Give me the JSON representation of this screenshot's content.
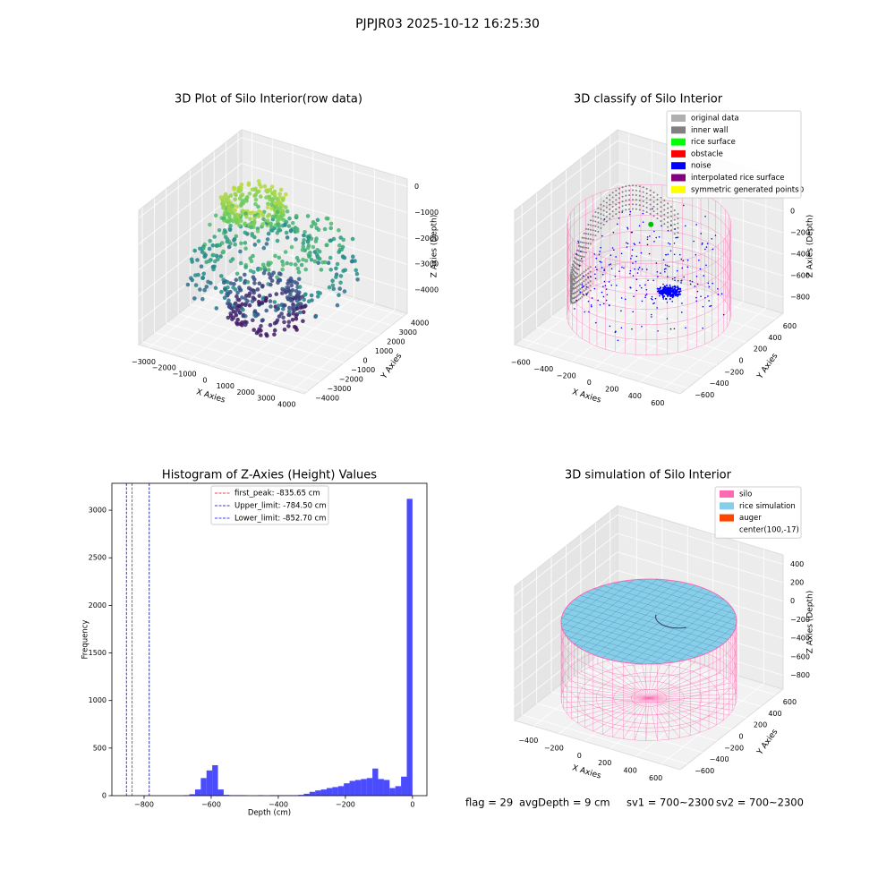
{
  "title": "PJPJR03 2025-10-12 16:25:30",
  "panels": [
    {
      "title": "3D Plot of Silo Interior(row data)",
      "xlabel": "X Axies",
      "ylabel": "Y Axies",
      "zlabel": "Z Axies (Depth)",
      "xlim": [
        -3500,
        4600
      ],
      "ylim": [
        -4300,
        4300
      ],
      "zlim": [
        -4900,
        300
      ],
      "xticks": [
        {
          "value": -3000,
          "label": "−3000"
        },
        {
          "value": -2000,
          "label": "−2000"
        },
        {
          "value": -1000,
          "label": "−1000"
        },
        0,
        1000,
        2000,
        3000,
        4000
      ],
      "yticks": [
        {
          "value": -4000,
          "label": "−4000"
        },
        {
          "value": -3000,
          "label": "−3000"
        },
        {
          "value": -2000,
          "label": "−2000"
        },
        {
          "value": -1000,
          "label": "−1000"
        },
        0,
        1000,
        2000,
        3000,
        4000
      ],
      "zticks": [
        0,
        {
          "value": -1000,
          "label": "−1000"
        },
        {
          "value": -2000,
          "label": "−2000"
        },
        {
          "value": -3000,
          "label": "−3000"
        },
        {
          "value": -4000,
          "label": "−4000"
        }
      ]
    },
    {
      "title": "3D classify of Silo Interior",
      "xlabel": "X Axies",
      "ylabel": "Y Axies",
      "zlabel": "Z Axies (Depth)",
      "xlim": [
        -700,
        750
      ],
      "ylim": [
        -700,
        700
      ],
      "zlim": [
        -950,
        300
      ],
      "xticks": [
        {
          "value": -600,
          "label": "−600"
        },
        {
          "value": -400,
          "label": "−400"
        },
        {
          "value": -200,
          "label": "−200"
        },
        0,
        200,
        400,
        600
      ],
      "yticks": [
        {
          "value": -600,
          "label": "−600"
        },
        {
          "value": -400,
          "label": "−400"
        },
        {
          "value": -200,
          "label": "−200"
        },
        0,
        200,
        400,
        600
      ],
      "zticks": [
        200,
        0,
        {
          "value": -200,
          "label": "−200"
        },
        {
          "value": -400,
          "label": "−400"
        },
        {
          "value": -600,
          "label": "−600"
        },
        {
          "value": -800,
          "label": "−800"
        }
      ],
      "legend": [
        {
          "name": "original data",
          "color": "#b0b0b0"
        },
        {
          "name": "inner wall",
          "color": "#808080"
        },
        {
          "name": "rice surface",
          "color": "#00ff00"
        },
        {
          "name": "obstacle",
          "color": "#ff0000"
        },
        {
          "name": "noise",
          "color": "#0000ff"
        },
        {
          "name": "interpolated rice surface",
          "color": "#800080"
        },
        {
          "name": "symmetric generated points",
          "color": "#ffff00"
        }
      ]
    },
    {
      "title": "3D simulation of Silo Interior",
      "xlabel": "X Axies",
      "ylabel": "Y Axies",
      "zlabel": "Z Axies (Depth)",
      "xlim": [
        -550,
        750
      ],
      "ylim": [
        -700,
        700
      ],
      "zlim": [
        -950,
        500
      ],
      "xticks": [
        {
          "value": -400,
          "label": "−400"
        },
        {
          "value": -200,
          "label": "−200"
        },
        0,
        200,
        400,
        600
      ],
      "yticks": [
        {
          "value": -600,
          "label": "−600"
        },
        {
          "value": -400,
          "label": "−400"
        },
        {
          "value": -200,
          "label": "−200"
        },
        0,
        200,
        400,
        600
      ],
      "zticks": [
        400,
        200,
        0,
        {
          "value": -200,
          "label": "−200"
        },
        {
          "value": -400,
          "label": "−400"
        },
        {
          "value": -600,
          "label": "−600"
        },
        {
          "value": -800,
          "label": "−800"
        }
      ],
      "legend": [
        {
          "name": "silo",
          "color": "#ff69b4"
        },
        {
          "name": "rice simulation",
          "color": "#87ceeb"
        },
        {
          "name": "auger",
          "color": "#ff4500"
        },
        {
          "name": "center(100,-17)",
          "color": "#ffffff"
        }
      ]
    }
  ],
  "chart_data": {
    "type": "histogram",
    "title": "Histogram of Z-Axies (Height) Values",
    "xlabel": "Depth (cm)",
    "ylabel": "Frequency",
    "color": "#0000ff",
    "alpha": 0.7,
    "bins": [
      -852.7,
      -835.65,
      -818.59,
      -801.54,
      -784.48,
      -767.43,
      -750.38,
      -733.32,
      -716.27,
      -699.21,
      -682.16,
      -665.11,
      -648.05,
      -631.0,
      -613.94,
      -596.89,
      -579.84,
      -562.78,
      -545.73,
      -528.67,
      -511.62,
      -494.57,
      -477.51,
      -460.46,
      -443.4,
      -426.35,
      -409.3,
      -392.24,
      -375.19,
      -358.13,
      -341.08,
      -324.03,
      -306.97,
      -289.92,
      -272.86,
      -255.81,
      -238.76,
      -221.7,
      -204.65,
      -187.59,
      -170.54,
      -153.49,
      -136.43,
      -119.38,
      -102.32,
      -85.27,
      -68.22,
      -51.16,
      -34.11,
      -17.05,
      0
    ],
    "values": [
      0,
      0,
      0,
      0,
      0,
      0,
      0,
      0,
      0,
      0,
      5,
      15,
      65,
      185,
      265,
      320,
      65,
      8,
      5,
      5,
      5,
      0,
      0,
      5,
      0,
      5,
      5,
      5,
      5,
      5,
      8,
      20,
      40,
      55,
      65,
      80,
      90,
      100,
      130,
      155,
      165,
      175,
      185,
      285,
      175,
      165,
      80,
      100,
      200,
      3120
    ],
    "lines": [
      {
        "name": "first_peak: -835.65 cm",
        "value": -835.65,
        "color": "#ff0000"
      },
      {
        "name": "Upper_limit: -784.50 cm",
        "value": -784.5,
        "color": "#00008b"
      },
      {
        "name": "Lower_limit: -852.70 cm",
        "value": -852.7,
        "color": "#0000ff"
      }
    ],
    "legend": "upper center",
    "xlim": [
      -896,
      43
    ],
    "ylim": [
      0,
      3283
    ],
    "xticks": [
      {
        "value": -800,
        "label": "−800"
      },
      {
        "value": -600,
        "label": "−600"
      },
      {
        "value": -400,
        "label": "−400"
      },
      {
        "value": -200,
        "label": "−200"
      },
      0
    ],
    "yticks": [
      0,
      500,
      1000,
      1500,
      2000,
      2500,
      3000
    ]
  },
  "footer": [
    "flag = 29",
    "avgDepth = 9 cm",
    "sv1 = 700~2300",
    "sv2 = 700~2300"
  ]
}
